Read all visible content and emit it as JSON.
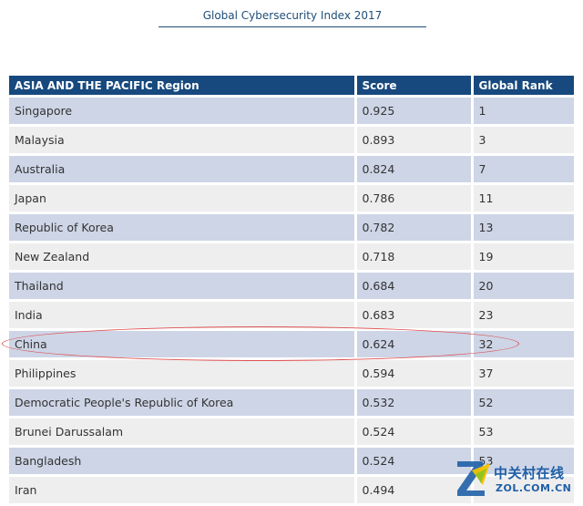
{
  "title": "Global Cybersecurity Index 2017",
  "table": {
    "headers": [
      "ASIA AND THE PACIFIC Region",
      "Score",
      "Global Rank"
    ],
    "rows": [
      {
        "country": "Singapore",
        "score": "0.925",
        "rank": "1"
      },
      {
        "country": "Malaysia",
        "score": "0.893",
        "rank": "3"
      },
      {
        "country": "Australia",
        "score": "0.824",
        "rank": "7"
      },
      {
        "country": "Japan",
        "score": "0.786",
        "rank": "11"
      },
      {
        "country": "Republic of Korea",
        "score": "0.782",
        "rank": "13"
      },
      {
        "country": "New Zealand",
        "score": "0.718",
        "rank": "19"
      },
      {
        "country": "Thailand",
        "score": "0.684",
        "rank": "20"
      },
      {
        "country": "India",
        "score": "0.683",
        "rank": "23"
      },
      {
        "country": "China",
        "score": "0.624",
        "rank": "32"
      },
      {
        "country": "Philippines",
        "score": "0.594",
        "rank": "37"
      },
      {
        "country": "Democratic People's Republic of Korea",
        "score": "0.532",
        "rank": "52"
      },
      {
        "country": "Brunei Darussalam",
        "score": "0.524",
        "rank": "53"
      },
      {
        "country": "Bangladesh",
        "score": "0.524",
        "rank": "53"
      },
      {
        "country": "Iran",
        "score": "0.494",
        "rank": ""
      }
    ]
  },
  "highlight": {
    "country": "China",
    "color": "#e05050"
  },
  "colors": {
    "header_bg": "#17497e",
    "row_odd": "#cdd5e6",
    "row_even": "#eeeeee",
    "title": "#1f4e79"
  },
  "watermark": {
    "cn": "中关村在线",
    "en": "ZOL.COM.CN"
  }
}
